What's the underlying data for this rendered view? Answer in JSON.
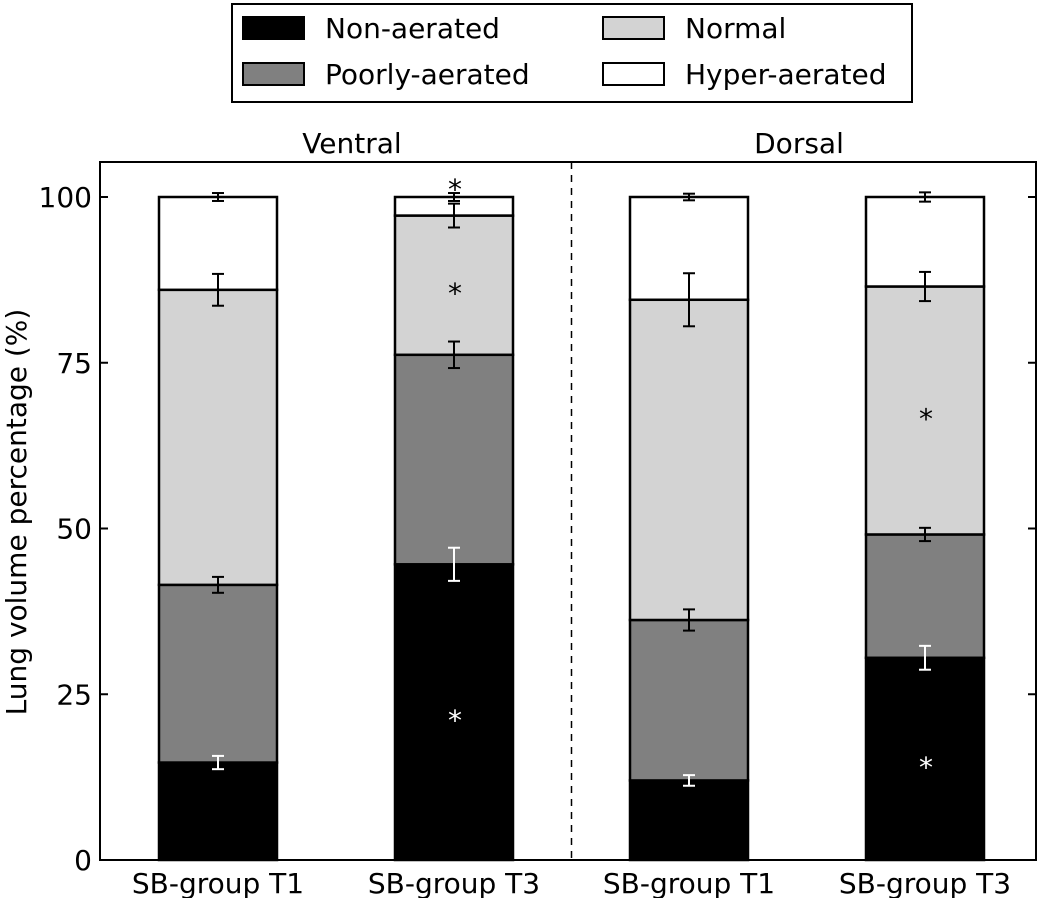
{
  "chart_data": {
    "type": "bar",
    "stacked": true,
    "ylabel": "Lung volume percentage (%)",
    "ylim": [
      0,
      100
    ],
    "yticks": [
      0,
      25,
      50,
      75,
      100
    ],
    "legend_placement": "top-center",
    "panels": [
      {
        "title": "Ventral",
        "categories": [
          "SB-group T1",
          "SB-group T3"
        ]
      },
      {
        "title": "Dorsal",
        "categories": [
          "SB-group T1",
          "SB-group T3"
        ]
      }
    ],
    "categories": [
      "SB-group T1",
      "SB-group T3",
      "SB-group T1",
      "SB-group T3"
    ],
    "series": [
      {
        "name": "Non-aerated",
        "color": "#000000",
        "values": [
          14.7,
          44.6,
          12.0,
          30.5
        ],
        "errors": [
          1.0,
          2.5,
          0.8,
          1.8
        ],
        "error_color": "#ffffff",
        "significant": [
          false,
          true,
          false,
          true
        ]
      },
      {
        "name": "Poorly-aerated",
        "color": "#808080",
        "values": [
          26.8,
          31.6,
          24.2,
          18.6
        ],
        "errors": [
          1.2,
          2.0,
          1.6,
          1.0
        ],
        "error_color": "#000000",
        "significant": [
          false,
          false,
          false,
          false
        ]
      },
      {
        "name": "Normal",
        "color": "#d3d3d3",
        "values": [
          44.5,
          21.0,
          48.3,
          37.4
        ],
        "errors": [
          2.4,
          1.8,
          4.0,
          2.2
        ],
        "error_color": "#000000",
        "significant": [
          false,
          true,
          false,
          true
        ]
      },
      {
        "name": "Hyper-aerated",
        "color": "#ffffff",
        "values": [
          14.0,
          2.8,
          15.5,
          13.5
        ],
        "errors": [
          0.6,
          0.6,
          0.5,
          0.7
        ],
        "error_color": "#000000",
        "significant": [
          false,
          true,
          false,
          false
        ]
      }
    ],
    "significance_marker": "*"
  }
}
